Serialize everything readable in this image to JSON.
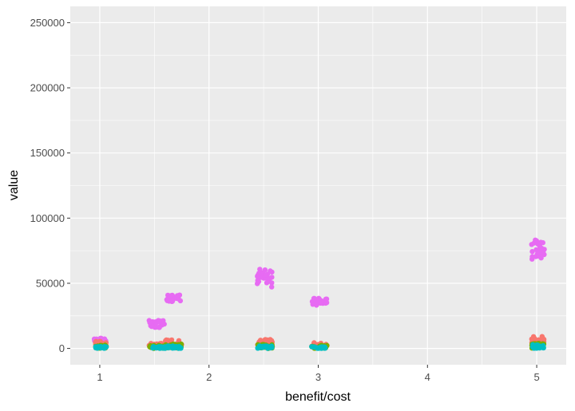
{
  "chart_data": {
    "type": "scatter",
    "title": "",
    "xlabel": "benefit/cost",
    "ylabel": "value",
    "xlim": [
      0.73,
      5.27
    ],
    "ylim": [
      -12500,
      262500
    ],
    "x_ticks": [
      1,
      2,
      3,
      4,
      5
    ],
    "y_ticks": [
      0,
      50000,
      100000,
      150000,
      200000,
      250000
    ],
    "x_tick_labels": [
      "1",
      "2",
      "3",
      "4",
      "5"
    ],
    "y_tick_labels": [
      "0",
      "50000",
      "100000",
      "150000",
      "200000",
      "250000"
    ],
    "grid": true,
    "legend": "none",
    "background_color": "#ebebeb",
    "grid_color": "#ffffff",
    "series": [
      {
        "color": "#e76bf3",
        "clusters": [
          {
            "x_min": 0.95,
            "x_max": 1.06,
            "y_min": 4500,
            "y_max": 8000
          },
          {
            "x_min": 1.45,
            "x_max": 1.6,
            "y_min": 16000,
            "y_max": 22000
          },
          {
            "x_min": 1.6,
            "x_max": 1.75,
            "y_min": 36000,
            "y_max": 41000
          },
          {
            "x_min": 2.44,
            "x_max": 2.58,
            "y_min": 47000,
            "y_max": 61000
          },
          {
            "x_min": 2.94,
            "x_max": 3.08,
            "y_min": 33000,
            "y_max": 38500
          },
          {
            "x_min": 4.95,
            "x_max": 5.07,
            "y_min": 68000,
            "y_max": 83500
          }
        ]
      },
      {
        "color": "#f8766d",
        "clusters": [
          {
            "x_min": 0.96,
            "x_max": 1.06,
            "y_min": 1000,
            "y_max": 5500
          },
          {
            "x_min": 1.45,
            "x_max": 1.6,
            "y_min": 1000,
            "y_max": 4000
          },
          {
            "x_min": 1.6,
            "x_max": 1.75,
            "y_min": 2000,
            "y_max": 7000
          },
          {
            "x_min": 2.44,
            "x_max": 2.58,
            "y_min": 2000,
            "y_max": 7000
          },
          {
            "x_min": 2.94,
            "x_max": 3.08,
            "y_min": 1000,
            "y_max": 4500
          },
          {
            "x_min": 4.95,
            "x_max": 5.07,
            "y_min": 2000,
            "y_max": 9500
          }
        ]
      },
      {
        "color": "#7cae00",
        "clusters": [
          {
            "x_min": 0.96,
            "x_max": 1.06,
            "y_min": 0,
            "y_max": 2500
          },
          {
            "x_min": 1.45,
            "x_max": 1.6,
            "y_min": 0,
            "y_max": 2500
          },
          {
            "x_min": 1.6,
            "x_max": 1.75,
            "y_min": 0,
            "y_max": 3500
          },
          {
            "x_min": 2.44,
            "x_max": 2.58,
            "y_min": 0,
            "y_max": 3000
          },
          {
            "x_min": 2.94,
            "x_max": 3.08,
            "y_min": 0,
            "y_max": 2500
          },
          {
            "x_min": 4.95,
            "x_max": 5.07,
            "y_min": 0,
            "y_max": 4000
          }
        ]
      },
      {
        "color": "#00bfc4",
        "clusters": [
          {
            "x_min": 0.96,
            "x_max": 1.06,
            "y_min": 0,
            "y_max": 1500
          },
          {
            "x_min": 1.45,
            "x_max": 1.6,
            "y_min": 0,
            "y_max": 1500
          },
          {
            "x_min": 1.6,
            "x_max": 1.75,
            "y_min": 0,
            "y_max": 2000
          },
          {
            "x_min": 2.44,
            "x_max": 2.58,
            "y_min": 0,
            "y_max": 2000
          },
          {
            "x_min": 2.94,
            "x_max": 3.08,
            "y_min": 0,
            "y_max": 1500
          },
          {
            "x_min": 4.95,
            "x_max": 5.07,
            "y_min": 0,
            "y_max": 3000
          }
        ]
      }
    ]
  }
}
